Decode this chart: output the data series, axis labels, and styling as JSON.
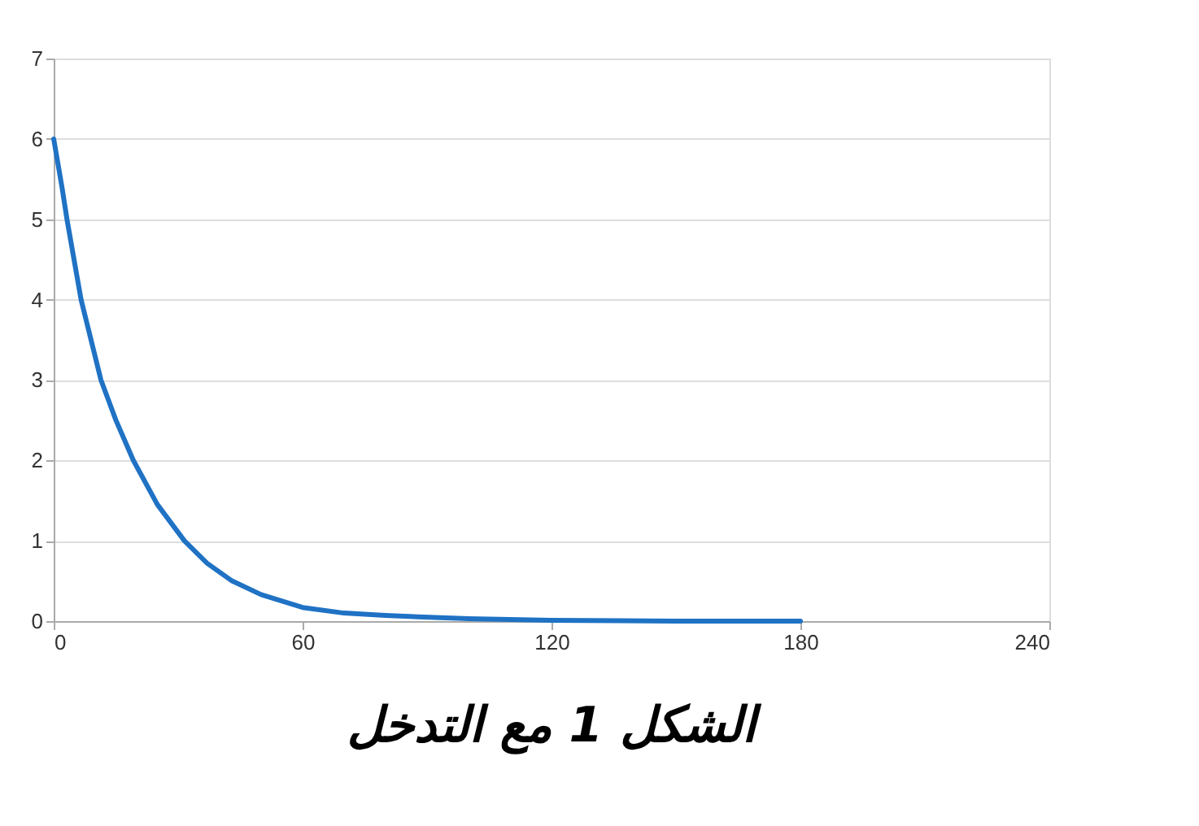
{
  "chart_data": {
    "type": "line",
    "title": "الشكل 1 مع التدخل",
    "x": [
      0,
      2,
      3.2,
      6.6,
      9,
      11.4,
      15,
      19.2,
      25,
      31.5,
      37,
      43,
      50,
      60,
      70,
      80,
      100,
      120,
      150,
      180
    ],
    "series": [
      {
        "color": "#1f72c4",
        "values": [
          6,
          5.4,
          5,
          4,
          3.5,
          3,
          2.5,
          2,
          1.45,
          1,
          0.72,
          0.5,
          0.33,
          0.17,
          0.1,
          0.07,
          0.03,
          0.01,
          0,
          0
        ]
      }
    ],
    "xlim": [
      0,
      240
    ],
    "xticks": [
      0,
      60,
      120,
      180,
      240
    ],
    "ylim": [
      0,
      7
    ],
    "yticks": [
      0,
      1,
      2,
      3,
      4,
      5,
      6,
      7
    ],
    "grid": "y",
    "marker": "none",
    "line_style": "solid"
  }
}
